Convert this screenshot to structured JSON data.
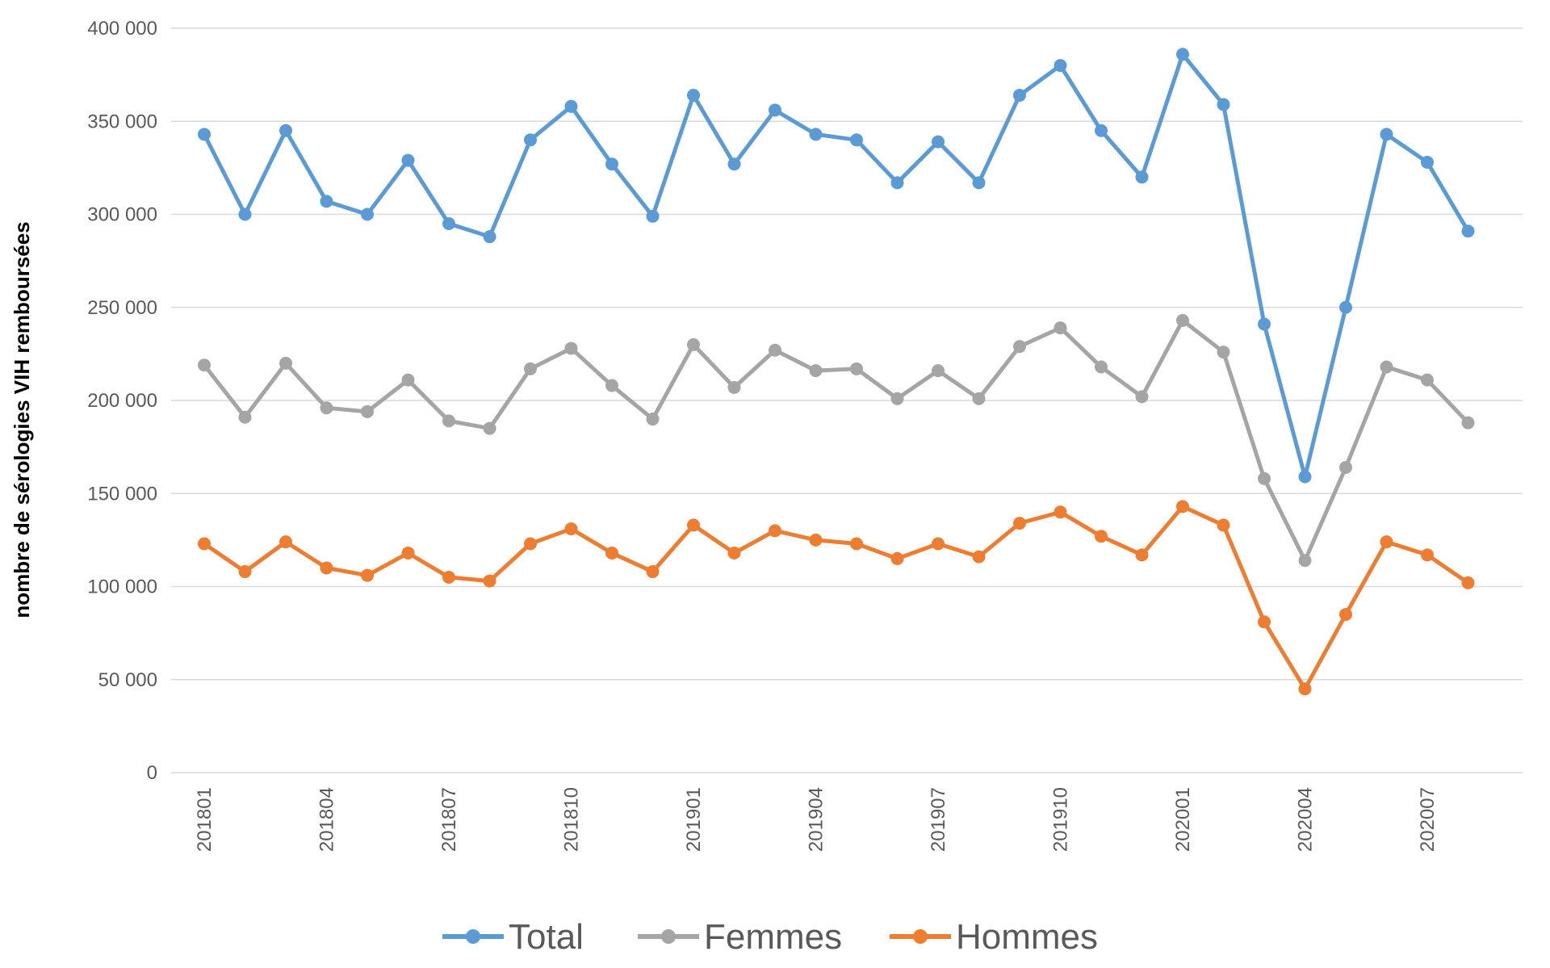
{
  "chart_data": {
    "type": "line",
    "ylabel": "nombre de sérologies VIH remboursées",
    "xlabel": "",
    "ylim": [
      0,
      400000
    ],
    "yticks": [
      0,
      50000,
      100000,
      150000,
      200000,
      250000,
      300000,
      350000,
      400000
    ],
    "ytick_labels": [
      "0",
      "50 000",
      "100 000",
      "150 000",
      "200 000",
      "250 000",
      "300 000",
      "350 000",
      "400 000"
    ],
    "grid": true,
    "legend_position": "bottom",
    "categories": [
      "201801",
      "201802",
      "201803",
      "201804",
      "201805",
      "201806",
      "201807",
      "201808",
      "201809",
      "201810",
      "201811",
      "201812",
      "201901",
      "201902",
      "201903",
      "201904",
      "201905",
      "201906",
      "201907",
      "201908",
      "201909",
      "201910",
      "201911",
      "201912",
      "202001",
      "202002",
      "202003",
      "202004",
      "202005",
      "202006",
      "202007",
      "202008"
    ],
    "xtick_labels": [
      "201801",
      "201804",
      "201807",
      "201810",
      "201901",
      "201904",
      "201907",
      "201910",
      "202001",
      "202004",
      "202007"
    ],
    "series": [
      {
        "name": "Total",
        "color": "#5b9bd5",
        "values": [
          343000,
          300000,
          345000,
          307000,
          300000,
          329000,
          295000,
          288000,
          340000,
          358000,
          327000,
          299000,
          364000,
          327000,
          356000,
          343000,
          340000,
          317000,
          339000,
          317000,
          364000,
          380000,
          345000,
          320000,
          386000,
          359000,
          241000,
          159000,
          250000,
          343000,
          328000,
          291000
        ]
      },
      {
        "name": "Femmes",
        "color": "#a5a5a5",
        "values": [
          219000,
          191000,
          220000,
          196000,
          194000,
          211000,
          189000,
          185000,
          217000,
          228000,
          208000,
          190000,
          230000,
          207000,
          227000,
          216000,
          217000,
          201000,
          216000,
          201000,
          229000,
          239000,
          218000,
          202000,
          243000,
          226000,
          158000,
          114000,
          164000,
          218000,
          211000,
          188000
        ]
      },
      {
        "name": "Hommes",
        "color": "#ed7d31",
        "values": [
          123000,
          108000,
          124000,
          110000,
          106000,
          118000,
          105000,
          103000,
          123000,
          131000,
          118000,
          108000,
          133000,
          118000,
          130000,
          125000,
          123000,
          115000,
          123000,
          116000,
          134000,
          140000,
          127000,
          117000,
          143000,
          133000,
          81000,
          45000,
          85000,
          124000,
          117000,
          102000
        ]
      }
    ]
  }
}
